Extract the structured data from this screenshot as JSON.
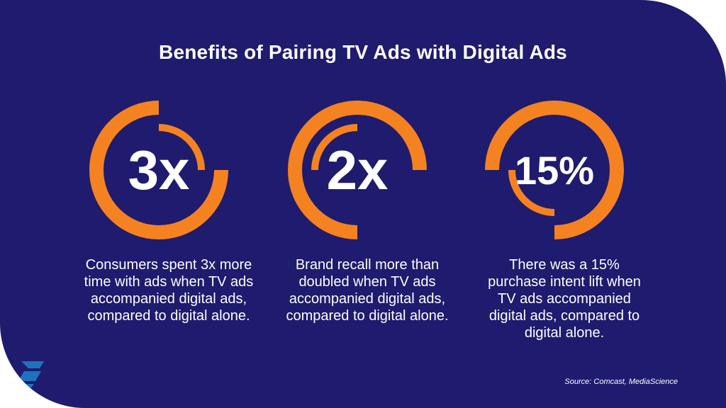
{
  "title": "Benefits of Pairing TV Ads with Digital Ads",
  "stats": [
    {
      "value": "3x",
      "description": "Consumers spent 3x more time with ads when TV ads accompanied digital ads, compared to digital alone."
    },
    {
      "value": "2x",
      "description": "Brand recall more than doubled when TV ads accompanied digital ads, compared to digital alone."
    },
    {
      "value": "15%",
      "description": "There was a 15% purchase intent lift when TV ads accompanied digital ads, compared to digital alone."
    }
  ],
  "source": "Source: Comcast, MediaScience",
  "logo_icon": "s-logo-icon",
  "colors": {
    "background": "#1f1b6e",
    "accent": "#f58220",
    "text": "#ffffff",
    "logo": "#1e73be"
  }
}
